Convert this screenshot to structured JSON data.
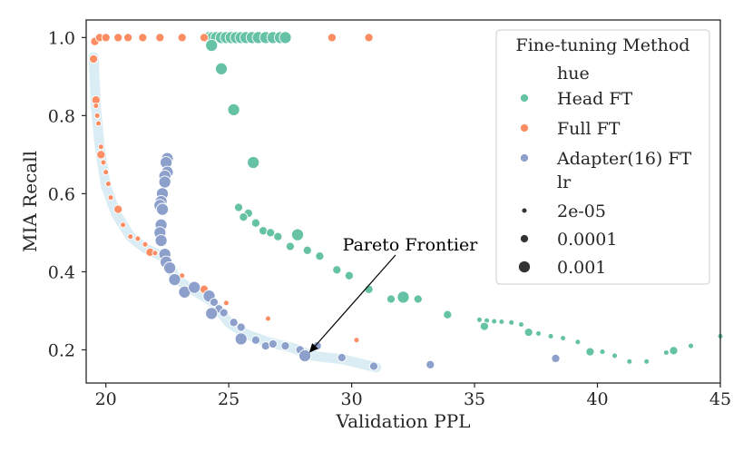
{
  "chart_data": {
    "type": "scatter",
    "title": "",
    "xlabel": "Validation PPL",
    "ylabel": "MIA Recall",
    "xlim": [
      19.2,
      45.0
    ],
    "ylim": [
      0.115,
      1.045
    ],
    "xticks": [
      20,
      25,
      30,
      35,
      40,
      45
    ],
    "yticks": [
      0.2,
      0.4,
      0.6,
      0.8,
      1.0
    ],
    "ytick_labels": [
      "0.2",
      "0.4",
      "0.6",
      "0.8",
      "1.0"
    ],
    "grid": false,
    "legend": {
      "title": "Fine-tuning Method",
      "placement": "top-right",
      "hue_header": "hue",
      "size_header": "lr",
      "methods": [
        {
          "name": "Head FT",
          "color": "#66c2a5"
        },
        {
          "name": "Full FT",
          "color": "#fc8d62"
        },
        {
          "name": "Adapter(16) FT",
          "color": "#8da0cb"
        }
      ],
      "sizes": [
        {
          "label": "2e-05",
          "lr": "2e-05"
        },
        {
          "label": "0.0001",
          "lr": "0.0001"
        },
        {
          "label": "0.001",
          "lr": "0.001"
        }
      ]
    },
    "annotation": {
      "text": "Pareto Frontier",
      "x": 28.2,
      "y": 0.188
    },
    "pareto_frontier": [
      [
        19.5,
        0.95
      ],
      [
        19.6,
        0.82
      ],
      [
        19.75,
        0.72
      ],
      [
        20.0,
        0.62
      ],
      [
        20.4,
        0.55
      ],
      [
        21.0,
        0.49
      ],
      [
        21.6,
        0.46
      ],
      [
        22.3,
        0.44
      ],
      [
        22.9,
        0.38
      ],
      [
        23.5,
        0.355
      ],
      [
        24.3,
        0.325
      ],
      [
        25.0,
        0.27
      ],
      [
        25.7,
        0.24
      ],
      [
        26.6,
        0.22
      ],
      [
        27.6,
        0.205
      ],
      [
        28.4,
        0.185
      ],
      [
        29.7,
        0.175
      ],
      [
        31.0,
        0.155
      ]
    ],
    "series": [
      {
        "name": "Head FT",
        "color": "#66c2a5",
        "points": [
          {
            "x": 24.2,
            "y": 1.0,
            "lr": "0.001"
          },
          {
            "x": 24.35,
            "y": 1.0,
            "lr": "0.001"
          },
          {
            "x": 24.5,
            "y": 1.0,
            "lr": "0.001"
          },
          {
            "x": 24.7,
            "y": 1.0,
            "lr": "0.001"
          },
          {
            "x": 24.9,
            "y": 1.0,
            "lr": "0.001"
          },
          {
            "x": 25.1,
            "y": 1.0,
            "lr": "0.001"
          },
          {
            "x": 25.3,
            "y": 1.0,
            "lr": "0.001"
          },
          {
            "x": 25.5,
            "y": 1.0,
            "lr": "0.001"
          },
          {
            "x": 25.7,
            "y": 1.0,
            "lr": "0.001"
          },
          {
            "x": 25.95,
            "y": 1.0,
            "lr": "0.001"
          },
          {
            "x": 26.2,
            "y": 1.0,
            "lr": "0.001"
          },
          {
            "x": 26.5,
            "y": 1.0,
            "lr": "0.001"
          },
          {
            "x": 26.8,
            "y": 1.0,
            "lr": "0.001"
          },
          {
            "x": 27.1,
            "y": 1.0,
            "lr": "0.001"
          },
          {
            "x": 27.3,
            "y": 1.0,
            "lr": "0.001"
          },
          {
            "x": 24.3,
            "y": 0.98,
            "lr": "0.001"
          },
          {
            "x": 24.7,
            "y": 0.92,
            "lr": "0.001"
          },
          {
            "x": 25.2,
            "y": 0.815,
            "lr": "0.001"
          },
          {
            "x": 26.0,
            "y": 0.68,
            "lr": "0.001"
          },
          {
            "x": 25.4,
            "y": 0.565,
            "lr": "0.0001"
          },
          {
            "x": 25.8,
            "y": 0.55,
            "lr": "0.0001"
          },
          {
            "x": 25.6,
            "y": 0.54,
            "lr": "0.0001"
          },
          {
            "x": 26.1,
            "y": 0.525,
            "lr": "0.0001"
          },
          {
            "x": 26.4,
            "y": 0.505,
            "lr": "0.0001"
          },
          {
            "x": 26.7,
            "y": 0.5,
            "lr": "0.0001"
          },
          {
            "x": 27.0,
            "y": 0.49,
            "lr": "0.0001"
          },
          {
            "x": 27.8,
            "y": 0.495,
            "lr": "0.001"
          },
          {
            "x": 27.5,
            "y": 0.465,
            "lr": "0.0001"
          },
          {
            "x": 28.2,
            "y": 0.455,
            "lr": "0.0001"
          },
          {
            "x": 28.7,
            "y": 0.44,
            "lr": "0.0001"
          },
          {
            "x": 29.4,
            "y": 0.405,
            "lr": "0.0001"
          },
          {
            "x": 29.9,
            "y": 0.39,
            "lr": "0.0001"
          },
          {
            "x": 30.7,
            "y": 0.355,
            "lr": "0.0001"
          },
          {
            "x": 31.6,
            "y": 0.33,
            "lr": "0.0001"
          },
          {
            "x": 32.1,
            "y": 0.335,
            "lr": "0.001"
          },
          {
            "x": 32.7,
            "y": 0.33,
            "lr": "0.0001"
          },
          {
            "x": 33.9,
            "y": 0.29,
            "lr": "0.0001"
          },
          {
            "x": 35.2,
            "y": 0.277,
            "lr": "2e-05"
          },
          {
            "x": 35.5,
            "y": 0.275,
            "lr": "2e-05"
          },
          {
            "x": 35.8,
            "y": 0.273,
            "lr": "2e-05"
          },
          {
            "x": 36.1,
            "y": 0.272,
            "lr": "2e-05"
          },
          {
            "x": 36.5,
            "y": 0.27,
            "lr": "2e-05"
          },
          {
            "x": 36.9,
            "y": 0.265,
            "lr": "2e-05"
          },
          {
            "x": 35.4,
            "y": 0.26,
            "lr": "0.0001"
          },
          {
            "x": 37.2,
            "y": 0.245,
            "lr": "0.0001"
          },
          {
            "x": 37.6,
            "y": 0.242,
            "lr": "2e-05"
          },
          {
            "x": 38.1,
            "y": 0.235,
            "lr": "2e-05"
          },
          {
            "x": 38.6,
            "y": 0.23,
            "lr": "2e-05"
          },
          {
            "x": 39.2,
            "y": 0.22,
            "lr": "2e-05"
          },
          {
            "x": 39.7,
            "y": 0.195,
            "lr": "0.0001"
          },
          {
            "x": 40.2,
            "y": 0.195,
            "lr": "2e-05"
          },
          {
            "x": 40.7,
            "y": 0.185,
            "lr": "2e-05"
          },
          {
            "x": 41.3,
            "y": 0.17,
            "lr": "2e-05"
          },
          {
            "x": 42.0,
            "y": 0.17,
            "lr": "2e-05"
          },
          {
            "x": 42.8,
            "y": 0.193,
            "lr": "2e-05"
          },
          {
            "x": 43.1,
            "y": 0.198,
            "lr": "0.0001"
          },
          {
            "x": 43.8,
            "y": 0.21,
            "lr": "2e-05"
          },
          {
            "x": 45.0,
            "y": 0.235,
            "lr": "2e-05"
          }
        ]
      },
      {
        "name": "Full FT",
        "color": "#fc8d62",
        "points": [
          {
            "x": 19.55,
            "y": 0.99,
            "lr": "0.0001"
          },
          {
            "x": 19.75,
            "y": 1.0,
            "lr": "0.0001"
          },
          {
            "x": 20.0,
            "y": 1.0,
            "lr": "0.0001"
          },
          {
            "x": 20.5,
            "y": 1.0,
            "lr": "0.0001"
          },
          {
            "x": 20.9,
            "y": 1.0,
            "lr": "0.0001"
          },
          {
            "x": 21.5,
            "y": 1.0,
            "lr": "0.0001"
          },
          {
            "x": 22.2,
            "y": 1.0,
            "lr": "0.0001"
          },
          {
            "x": 23.1,
            "y": 1.0,
            "lr": "0.0001"
          },
          {
            "x": 24.0,
            "y": 1.0,
            "lr": "0.0001"
          },
          {
            "x": 29.2,
            "y": 1.0,
            "lr": "0.0001"
          },
          {
            "x": 30.7,
            "y": 1.0,
            "lr": "0.0001"
          },
          {
            "x": 19.5,
            "y": 0.945,
            "lr": "0.0001"
          },
          {
            "x": 19.6,
            "y": 0.84,
            "lr": "0.0001"
          },
          {
            "x": 19.6,
            "y": 0.825,
            "lr": "2e-05"
          },
          {
            "x": 19.65,
            "y": 0.8,
            "lr": "2e-05"
          },
          {
            "x": 19.7,
            "y": 0.78,
            "lr": "2e-05"
          },
          {
            "x": 19.8,
            "y": 0.72,
            "lr": "2e-05"
          },
          {
            "x": 19.8,
            "y": 0.7,
            "lr": "0.0001"
          },
          {
            "x": 19.9,
            "y": 0.68,
            "lr": "2e-05"
          },
          {
            "x": 20.0,
            "y": 0.655,
            "lr": "2e-05"
          },
          {
            "x": 20.1,
            "y": 0.625,
            "lr": "2e-05"
          },
          {
            "x": 20.2,
            "y": 0.59,
            "lr": "2e-05"
          },
          {
            "x": 20.5,
            "y": 0.56,
            "lr": "0.0001"
          },
          {
            "x": 20.7,
            "y": 0.52,
            "lr": "2e-05"
          },
          {
            "x": 21.0,
            "y": 0.49,
            "lr": "2e-05"
          },
          {
            "x": 21.3,
            "y": 0.485,
            "lr": "2e-05"
          },
          {
            "x": 21.6,
            "y": 0.47,
            "lr": "2e-05"
          },
          {
            "x": 21.8,
            "y": 0.45,
            "lr": "0.0001"
          },
          {
            "x": 22.0,
            "y": 0.448,
            "lr": "2e-05"
          },
          {
            "x": 23.1,
            "y": 0.39,
            "lr": "2e-05"
          },
          {
            "x": 24.0,
            "y": 0.355,
            "lr": "0.0001"
          },
          {
            "x": 24.9,
            "y": 0.32,
            "lr": "2e-05"
          },
          {
            "x": 26.6,
            "y": 0.28,
            "lr": "2e-05"
          },
          {
            "x": 30.2,
            "y": 0.225,
            "lr": "2e-05"
          }
        ]
      },
      {
        "name": "Adapter(16) FT",
        "color": "#8da0cb",
        "points": [
          {
            "x": 22.5,
            "y": 0.69,
            "lr": "0.001"
          },
          {
            "x": 22.45,
            "y": 0.68,
            "lr": "0.001"
          },
          {
            "x": 22.5,
            "y": 0.655,
            "lr": "0.001"
          },
          {
            "x": 22.4,
            "y": 0.645,
            "lr": "0.001"
          },
          {
            "x": 22.4,
            "y": 0.63,
            "lr": "0.001"
          },
          {
            "x": 22.3,
            "y": 0.6,
            "lr": "0.001"
          },
          {
            "x": 22.25,
            "y": 0.58,
            "lr": "0.001"
          },
          {
            "x": 22.2,
            "y": 0.57,
            "lr": "0.001"
          },
          {
            "x": 22.3,
            "y": 0.56,
            "lr": "0.001"
          },
          {
            "x": 22.25,
            "y": 0.52,
            "lr": "0.001"
          },
          {
            "x": 22.2,
            "y": 0.5,
            "lr": "0.001"
          },
          {
            "x": 22.25,
            "y": 0.48,
            "lr": "0.001"
          },
          {
            "x": 22.4,
            "y": 0.445,
            "lr": "0.001"
          },
          {
            "x": 22.45,
            "y": 0.425,
            "lr": "0.001"
          },
          {
            "x": 22.6,
            "y": 0.41,
            "lr": "0.001"
          },
          {
            "x": 22.8,
            "y": 0.38,
            "lr": "0.001"
          },
          {
            "x": 23.2,
            "y": 0.348,
            "lr": "0.001"
          },
          {
            "x": 23.6,
            "y": 0.36,
            "lr": "0.001"
          },
          {
            "x": 24.2,
            "y": 0.338,
            "lr": "0.001"
          },
          {
            "x": 24.4,
            "y": 0.322,
            "lr": "0.0001"
          },
          {
            "x": 24.6,
            "y": 0.305,
            "lr": "0.0001"
          },
          {
            "x": 24.3,
            "y": 0.293,
            "lr": "0.001"
          },
          {
            "x": 24.8,
            "y": 0.295,
            "lr": "0.0001"
          },
          {
            "x": 25.2,
            "y": 0.27,
            "lr": "0.0001"
          },
          {
            "x": 25.5,
            "y": 0.258,
            "lr": "0.0001"
          },
          {
            "x": 25.5,
            "y": 0.228,
            "lr": "0.001"
          },
          {
            "x": 26.1,
            "y": 0.225,
            "lr": "0.0001"
          },
          {
            "x": 26.5,
            "y": 0.21,
            "lr": "0.0001"
          },
          {
            "x": 26.8,
            "y": 0.215,
            "lr": "0.0001"
          },
          {
            "x": 27.3,
            "y": 0.21,
            "lr": "0.0001"
          },
          {
            "x": 27.9,
            "y": 0.2,
            "lr": "0.0001"
          },
          {
            "x": 28.1,
            "y": 0.185,
            "lr": "0.001"
          },
          {
            "x": 28.6,
            "y": 0.21,
            "lr": "0.0001"
          },
          {
            "x": 29.6,
            "y": 0.18,
            "lr": "0.0001"
          },
          {
            "x": 30.9,
            "y": 0.158,
            "lr": "0.0001"
          },
          {
            "x": 33.2,
            "y": 0.162,
            "lr": "0.0001"
          },
          {
            "x": 38.3,
            "y": 0.178,
            "lr": "0.0001"
          }
        ]
      }
    ]
  }
}
